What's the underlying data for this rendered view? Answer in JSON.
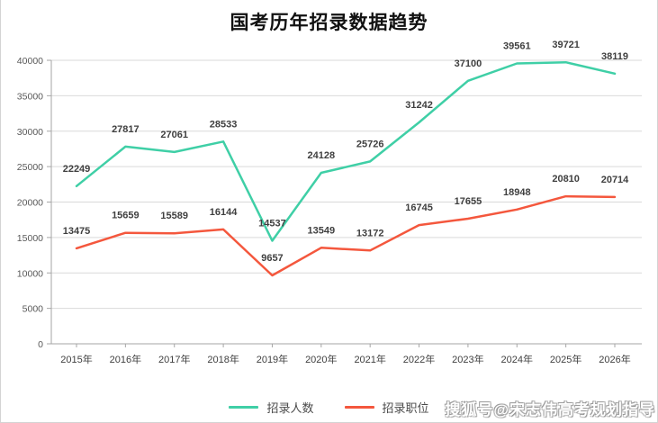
{
  "page": {
    "title": "国考历年招录数据趋势",
    "watermark": "搜狐号@宋志伟高考规划指导"
  },
  "legend": {
    "items": [
      {
        "label": "招录人数",
        "color": "#3fcfa6"
      },
      {
        "label": "招录职位",
        "color": "#f4573d"
      }
    ]
  },
  "chart_data": {
    "type": "line",
    "title": "国考历年招录数据趋势",
    "categories": [
      "2015年",
      "2016年",
      "2017年",
      "2018年",
      "2019年",
      "2020年",
      "2021年",
      "2022年",
      "2023年",
      "2024年",
      "2025年",
      "2026年"
    ],
    "series": [
      {
        "name": "招录人数",
        "color": "#3fcfa6",
        "values": [
          22249,
          27817,
          27061,
          28533,
          14537,
          24128,
          25726,
          31242,
          37100,
          39561,
          39721,
          38119
        ]
      },
      {
        "name": "招录职位",
        "color": "#f4573d",
        "values": [
          13475,
          15659,
          15589,
          16144,
          9657,
          13549,
          13172,
          16745,
          17655,
          18948,
          20810,
          20714
        ]
      }
    ],
    "xlabel": "",
    "ylabel": "",
    "ylim": [
      0,
      40000
    ],
    "ytick_step": 5000,
    "grid": true,
    "legend_position": "bottom",
    "data_labels": true,
    "colors": {
      "gridline": "#d9d9d9",
      "axis": "#a6a6a6",
      "tick_label": "#595959",
      "category_label": "#404040",
      "data_label": "#3f3f3f"
    }
  }
}
